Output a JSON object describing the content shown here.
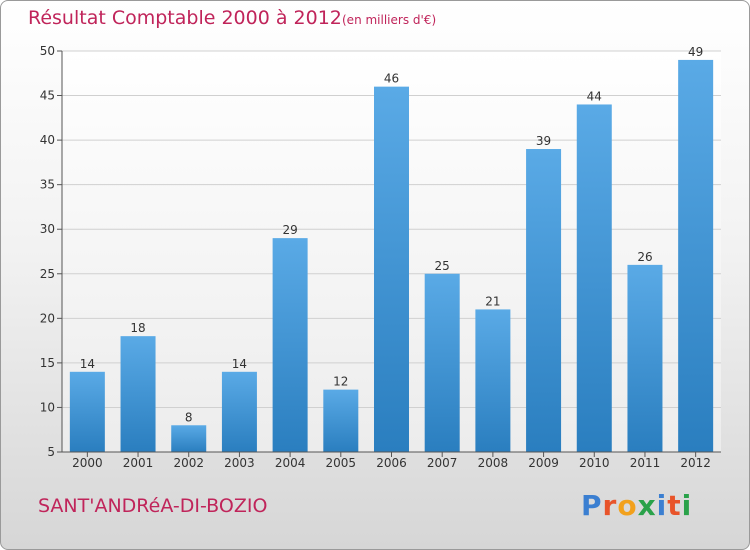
{
  "title": "Résultat Comptable 2000 à 2012",
  "subtitle": "(en milliers d'€)",
  "commune": "SANT'ANDRéA-DI-BOZIO",
  "logo": "Proxiti",
  "colors": {
    "title": "#c0245a",
    "bar_top": "#5aaae6",
    "bar_bottom": "#2a7ebf"
  },
  "chart_data": {
    "type": "bar",
    "title": "Résultat Comptable 2000 à 2012",
    "subtitle": "(en milliers d'€)",
    "categories": [
      "2000",
      "2001",
      "2002",
      "2003",
      "2004",
      "2005",
      "2006",
      "2007",
      "2008",
      "2009",
      "2010",
      "2011",
      "2012"
    ],
    "values": [
      14,
      18,
      8,
      14,
      29,
      12,
      46,
      25,
      21,
      39,
      44,
      26,
      49
    ],
    "ylim": [
      5,
      50
    ],
    "yticks": [
      5,
      10,
      15,
      20,
      25,
      30,
      35,
      40,
      45,
      50
    ],
    "grid": true,
    "data_labels": true
  }
}
